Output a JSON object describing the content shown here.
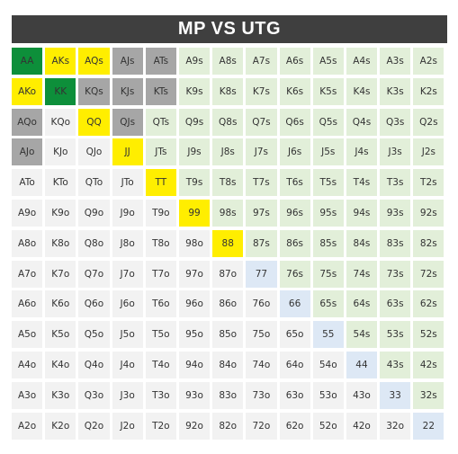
{
  "title": "MP VS UTG",
  "colors": {
    "dark_green": "#0d8f3a",
    "yellow": "#ffee00",
    "gray": "#a6a6a6",
    "suited": "#e2efd9",
    "offsuit": "#f2f2f2",
    "pair": "#dde8f5",
    "title_bar": "#3f3f3f"
  },
  "legend": {
    "g": "dark_green",
    "y": "yellow",
    "r": "gray",
    "s": "suited",
    "o": "offsuit",
    "p": "pair"
  },
  "hands": [
    [
      "AA",
      "AKs",
      "AQs",
      "AJs",
      "ATs",
      "A9s",
      "A8s",
      "A7s",
      "A6s",
      "A5s",
      "A4s",
      "A3s",
      "A2s"
    ],
    [
      "AKo",
      "KK",
      "KQs",
      "KJs",
      "KTs",
      "K9s",
      "K8s",
      "K7s",
      "K6s",
      "K5s",
      "K4s",
      "K3s",
      "K2s"
    ],
    [
      "AQo",
      "KQo",
      "QQ",
      "QJs",
      "QTs",
      "Q9s",
      "Q8s",
      "Q7s",
      "Q6s",
      "Q5s",
      "Q4s",
      "Q3s",
      "Q2s"
    ],
    [
      "AJo",
      "KJo",
      "QJo",
      "JJ",
      "JTs",
      "J9s",
      "J8s",
      "J7s",
      "J6s",
      "J5s",
      "J4s",
      "J3s",
      "J2s"
    ],
    [
      "ATo",
      "KTo",
      "QTo",
      "JTo",
      "TT",
      "T9s",
      "T8s",
      "T7s",
      "T6s",
      "T5s",
      "T4s",
      "T3s",
      "T2s"
    ],
    [
      "A9o",
      "K9o",
      "Q9o",
      "J9o",
      "T9o",
      "99",
      "98s",
      "97s",
      "96s",
      "95s",
      "94s",
      "93s",
      "92s"
    ],
    [
      "A8o",
      "K8o",
      "Q8o",
      "J8o",
      "T8o",
      "98o",
      "88",
      "87s",
      "86s",
      "85s",
      "84s",
      "83s",
      "82s"
    ],
    [
      "A7o",
      "K7o",
      "Q7o",
      "J7o",
      "T7o",
      "97o",
      "87o",
      "77",
      "76s",
      "75s",
      "74s",
      "73s",
      "72s"
    ],
    [
      "A6o",
      "K6o",
      "Q6o",
      "J6o",
      "T6o",
      "96o",
      "86o",
      "76o",
      "66",
      "65s",
      "64s",
      "63s",
      "62s"
    ],
    [
      "A5o",
      "K5o",
      "Q5o",
      "J5o",
      "T5o",
      "95o",
      "85o",
      "75o",
      "65o",
      "55",
      "54s",
      "53s",
      "52s"
    ],
    [
      "A4o",
      "K4o",
      "Q4o",
      "J4o",
      "T4o",
      "94o",
      "84o",
      "74o",
      "64o",
      "54o",
      "44",
      "43s",
      "42s"
    ],
    [
      "A3o",
      "K3o",
      "Q3o",
      "J3o",
      "T3o",
      "93o",
      "83o",
      "73o",
      "63o",
      "53o",
      "43o",
      "33",
      "32s"
    ],
    [
      "A2o",
      "K2o",
      "Q2o",
      "J2o",
      "T2o",
      "92o",
      "82o",
      "72o",
      "62o",
      "52o",
      "42o",
      "32o",
      "22"
    ]
  ],
  "cell_colors": [
    [
      "g",
      "y",
      "y",
      "r",
      "r",
      "s",
      "s",
      "s",
      "s",
      "s",
      "s",
      "s",
      "s"
    ],
    [
      "y",
      "g",
      "r",
      "r",
      "r",
      "s",
      "s",
      "s",
      "s",
      "s",
      "s",
      "s",
      "s"
    ],
    [
      "r",
      "o",
      "y",
      "r",
      "s",
      "s",
      "s",
      "s",
      "s",
      "s",
      "s",
      "s",
      "s"
    ],
    [
      "r",
      "o",
      "o",
      "y",
      "s",
      "s",
      "s",
      "s",
      "s",
      "s",
      "s",
      "s",
      "s"
    ],
    [
      "o",
      "o",
      "o",
      "o",
      "y",
      "s",
      "s",
      "s",
      "s",
      "s",
      "s",
      "s",
      "s"
    ],
    [
      "o",
      "o",
      "o",
      "o",
      "o",
      "y",
      "s",
      "s",
      "s",
      "s",
      "s",
      "s",
      "s"
    ],
    [
      "o",
      "o",
      "o",
      "o",
      "o",
      "o",
      "y",
      "s",
      "s",
      "s",
      "s",
      "s",
      "s"
    ],
    [
      "o",
      "o",
      "o",
      "o",
      "o",
      "o",
      "o",
      "p",
      "s",
      "s",
      "s",
      "s",
      "s"
    ],
    [
      "o",
      "o",
      "o",
      "o",
      "o",
      "o",
      "o",
      "o",
      "p",
      "s",
      "s",
      "s",
      "s"
    ],
    [
      "o",
      "o",
      "o",
      "o",
      "o",
      "o",
      "o",
      "o",
      "o",
      "p",
      "s",
      "s",
      "s"
    ],
    [
      "o",
      "o",
      "o",
      "o",
      "o",
      "o",
      "o",
      "o",
      "o",
      "o",
      "p",
      "s",
      "s"
    ],
    [
      "o",
      "o",
      "o",
      "o",
      "o",
      "o",
      "o",
      "o",
      "o",
      "o",
      "o",
      "p",
      "s"
    ],
    [
      "o",
      "o",
      "o",
      "o",
      "o",
      "o",
      "o",
      "o",
      "o",
      "o",
      "o",
      "o",
      "p"
    ]
  ]
}
